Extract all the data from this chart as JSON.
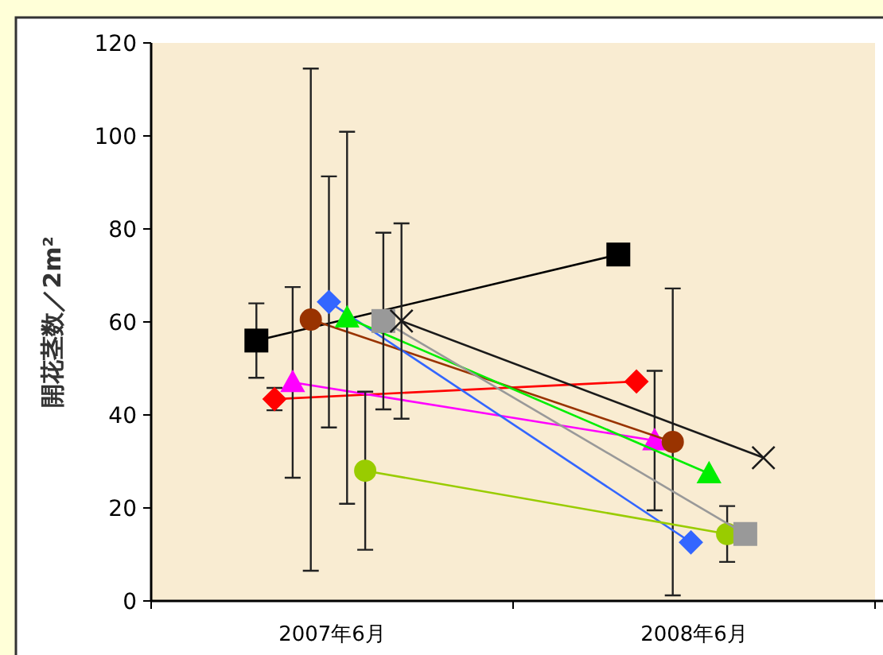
{
  "chart_data": {
    "type": "line",
    "ylabel": "開花茎数／2m²",
    "categories": [
      "2007年6月",
      "2008年6月"
    ],
    "ylim": [
      0,
      120
    ],
    "yticks": [
      0,
      20,
      40,
      60,
      80,
      100,
      120
    ],
    "grid": false,
    "series": [
      {
        "color": "#000000",
        "marker": "square",
        "values": [
          56,
          74.5
        ],
        "errors": [
          8,
          null
        ]
      },
      {
        "color": "#ff0000",
        "marker": "diamond",
        "values": [
          43.4,
          47.2
        ],
        "errors": [
          2.4,
          null
        ]
      },
      {
        "color": "#ff00ff",
        "marker": "triangle",
        "values": [
          47,
          34.5
        ],
        "errors": [
          20.5,
          15
        ]
      },
      {
        "color": "#993300",
        "marker": "circle",
        "values": [
          60.5,
          34.2
        ],
        "errors": [
          54,
          33
        ]
      },
      {
        "color": "#3366ff",
        "marker": "diamond",
        "values": [
          64.3,
          12.6
        ],
        "errors": [
          27,
          null
        ]
      },
      {
        "color": "#00ee00",
        "marker": "triangle",
        "values": [
          60.9,
          27.4
        ],
        "errors": [
          40,
          null
        ]
      },
      {
        "color": "#99cc00",
        "marker": "circle",
        "values": [
          28,
          14.4
        ],
        "errors": [
          17,
          6
        ]
      },
      {
        "color": "#999999",
        "marker": "square",
        "values": [
          60.2,
          14.4
        ],
        "errors": [
          19,
          null
        ]
      },
      {
        "color": "#1a1a1a",
        "marker": "cross",
        "values": [
          60.2,
          30.8
        ],
        "errors": [
          21,
          null
        ]
      }
    ]
  }
}
